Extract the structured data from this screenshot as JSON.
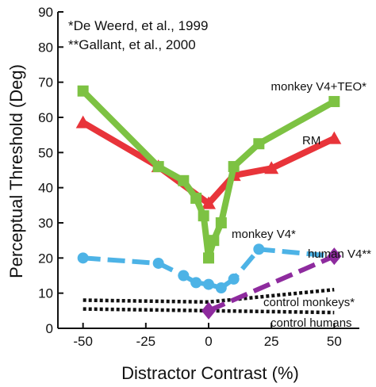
{
  "chart_data": {
    "type": "line",
    "xlabel": "Distractor Contrast (%)",
    "ylabel": "Perceptual Threshold (Deg)",
    "xlim": [
      -60,
      60
    ],
    "ylim": [
      0,
      90
    ],
    "x_ticks": [
      -50,
      -25,
      0,
      25,
      50
    ],
    "x_tick_labels": [
      "-50",
      "-25",
      "0",
      "25",
      "50"
    ],
    "y_ticks": [
      0,
      10,
      20,
      30,
      40,
      50,
      60,
      70,
      80,
      90
    ],
    "y_tick_labels": [
      "0",
      "10",
      "20",
      "30",
      "40",
      "50",
      "60",
      "70",
      "80",
      "90"
    ],
    "grid": false,
    "annotations": [
      "*De Weerd, et al., 1999",
      "**Gallant, et al., 2000"
    ],
    "series": [
      {
        "name": "monkey V4+TEO*",
        "color": "#7dc243",
        "marker": "square",
        "line": "solid",
        "x": [
          -50,
          -20,
          -10,
          -5,
          -2,
          0,
          2,
          5,
          10,
          20,
          50
        ],
        "y": [
          67.5,
          46,
          42,
          37,
          32,
          20,
          25,
          30,
          46,
          52.5,
          64.5
        ]
      },
      {
        "name": "RM",
        "color": "#e8343a",
        "marker": "triangle",
        "line": "solid",
        "x": [
          -50,
          -20,
          0,
          10,
          25,
          50
        ],
        "y": [
          58.5,
          46,
          35.5,
          43.5,
          45.5,
          54
        ]
      },
      {
        "name": "monkey V4*",
        "color": "#4db3e6",
        "marker": "circle",
        "line": "dashed",
        "x": [
          -50,
          -20,
          -10,
          -5,
          0,
          5,
          10,
          20,
          50
        ],
        "y": [
          20,
          18.5,
          15,
          13,
          12.5,
          11.5,
          14,
          22.5,
          20.5
        ]
      },
      {
        "name": "human V4**",
        "color": "#8e2b9e",
        "marker": "diamond",
        "line": "dashed",
        "x": [
          0,
          50
        ],
        "y": [
          5,
          20.5
        ]
      },
      {
        "name": "control monkeys*",
        "color": "#111111",
        "marker": "none",
        "line": "dotted",
        "x": [
          -50,
          0,
          50
        ],
        "y": [
          8,
          7.5,
          11
        ]
      },
      {
        "name": "control humans",
        "color": "#111111",
        "marker": "none",
        "line": "dotted",
        "x": [
          -50,
          0,
          50
        ],
        "y": [
          5.5,
          5,
          4.5
        ]
      }
    ]
  }
}
